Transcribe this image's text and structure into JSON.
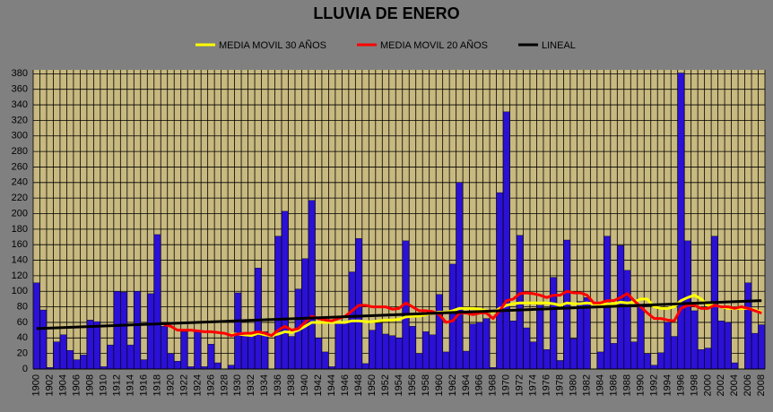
{
  "chart_data": {
    "type": "bar",
    "title": "LLUVIA DE ENERO",
    "categories": [
      1900,
      null,
      1902,
      null,
      1904,
      null,
      1906,
      null,
      1908,
      null,
      1910,
      null,
      1912,
      null,
      1914,
      null,
      1916,
      null,
      1918,
      null,
      1920,
      null,
      1922,
      null,
      1924,
      null,
      1926,
      null,
      1928,
      null,
      1930,
      null,
      1932,
      null,
      1934,
      null,
      1936,
      null,
      1938,
      null,
      1940,
      null,
      1942,
      null,
      1944,
      null,
      1946,
      null,
      1948,
      null,
      1950,
      null,
      1952,
      null,
      1954,
      null,
      1956,
      null,
      1958,
      null,
      1960,
      null,
      1962,
      null,
      1964,
      null,
      1966,
      null,
      1968,
      null,
      1970,
      null,
      1972,
      null,
      1974,
      null,
      1976,
      null,
      1978,
      null,
      1980,
      null,
      1982,
      null,
      1984,
      null,
      1986,
      null,
      1988,
      null,
      1990,
      null,
      1992,
      null,
      1994,
      null,
      1996,
      null,
      1998,
      null,
      2000,
      null,
      2002,
      null,
      2004,
      null,
      2006,
      null,
      2008
    ],
    "values": [
      111,
      76,
      2,
      35,
      44,
      24,
      12,
      18,
      63,
      61,
      3,
      31,
      100,
      99,
      31,
      100,
      12,
      97,
      173,
      55,
      20,
      10,
      48,
      3,
      48,
      3,
      32,
      8,
      0,
      5,
      98,
      45,
      42,
      130,
      48,
      0,
      171,
      203,
      42,
      103,
      142,
      217,
      40,
      22,
      3,
      60,
      59,
      125,
      168,
      7,
      50,
      59,
      45,
      43,
      40,
      165,
      55,
      20,
      48,
      44,
      96,
      22,
      135,
      240,
      23,
      58,
      60,
      65,
      2,
      227,
      331,
      62,
      172,
      53,
      35,
      82,
      25,
      118,
      11,
      166,
      39,
      87,
      92,
      0,
      22,
      171,
      33,
      159,
      127,
      35,
      83,
      20,
      5,
      21,
      60,
      42,
      381,
      165,
      75,
      25,
      27,
      171,
      62,
      60,
      8,
      0,
      111,
      46,
      57
    ],
    "color": "#2b10d6",
    "series": [
      {
        "name": "MEDIA MOVIL 30 AÑOS",
        "color": "#ffff00",
        "values": [
          null,
          null,
          null,
          null,
          null,
          null,
          null,
          null,
          null,
          null,
          null,
          null,
          null,
          null,
          null,
          null,
          null,
          null,
          null,
          null,
          null,
          null,
          null,
          null,
          null,
          null,
          null,
          null,
          null,
          45,
          45,
          44,
          43,
          46,
          44,
          43,
          45,
          48,
          47,
          50,
          55,
          60,
          60,
          60,
          60,
          60,
          60,
          62,
          62,
          61,
          61,
          62,
          63,
          63,
          64,
          67,
          68,
          68,
          70,
          72,
          73,
          73,
          75,
          78,
          78,
          78,
          77,
          75,
          73,
          78,
          82,
          84,
          85,
          85,
          85,
          85,
          85,
          84,
          82,
          85,
          84,
          84,
          85,
          84,
          83,
          84,
          84,
          86,
          85,
          86,
          90,
          90,
          80,
          78,
          78,
          80,
          88,
          92,
          95,
          90,
          82,
          82,
          80,
          78,
          78,
          78,
          78,
          76,
          73
        ]
      },
      {
        "name": "MEDIA MOVIL 20 AÑOS",
        "color": "#ff0000",
        "values": [
          null,
          null,
          null,
          null,
          null,
          null,
          null,
          null,
          null,
          null,
          null,
          null,
          null,
          null,
          null,
          null,
          null,
          null,
          null,
          57,
          55,
          50,
          50,
          50,
          49,
          48,
          48,
          47,
          46,
          43,
          45,
          46,
          46,
          48,
          46,
          43,
          50,
          55,
          50,
          52,
          60,
          68,
          65,
          63,
          62,
          65,
          68,
          75,
          82,
          82,
          80,
          80,
          80,
          77,
          78,
          85,
          80,
          75,
          75,
          74,
          70,
          60,
          62,
          72,
          72,
          70,
          72,
          72,
          65,
          75,
          88,
          90,
          97,
          98,
          97,
          95,
          92,
          95,
          95,
          100,
          98,
          98,
          95,
          85,
          85,
          88,
          88,
          92,
          97,
          88,
          80,
          72,
          65,
          65,
          63,
          62,
          78,
          82,
          82,
          78,
          78,
          82,
          80,
          80,
          78,
          80,
          78,
          75,
          72
        ]
      },
      {
        "name": "LINEAL",
        "color": "#000000",
        "x": [
          1900,
          2008
        ],
        "values": [
          52,
          88
        ]
      }
    ],
    "ylim": [
      0,
      385
    ],
    "yticks": [
      0,
      20,
      40,
      60,
      80,
      100,
      120,
      140,
      160,
      180,
      200,
      220,
      240,
      260,
      280,
      300,
      320,
      340,
      360,
      380
    ],
    "grid": true
  }
}
